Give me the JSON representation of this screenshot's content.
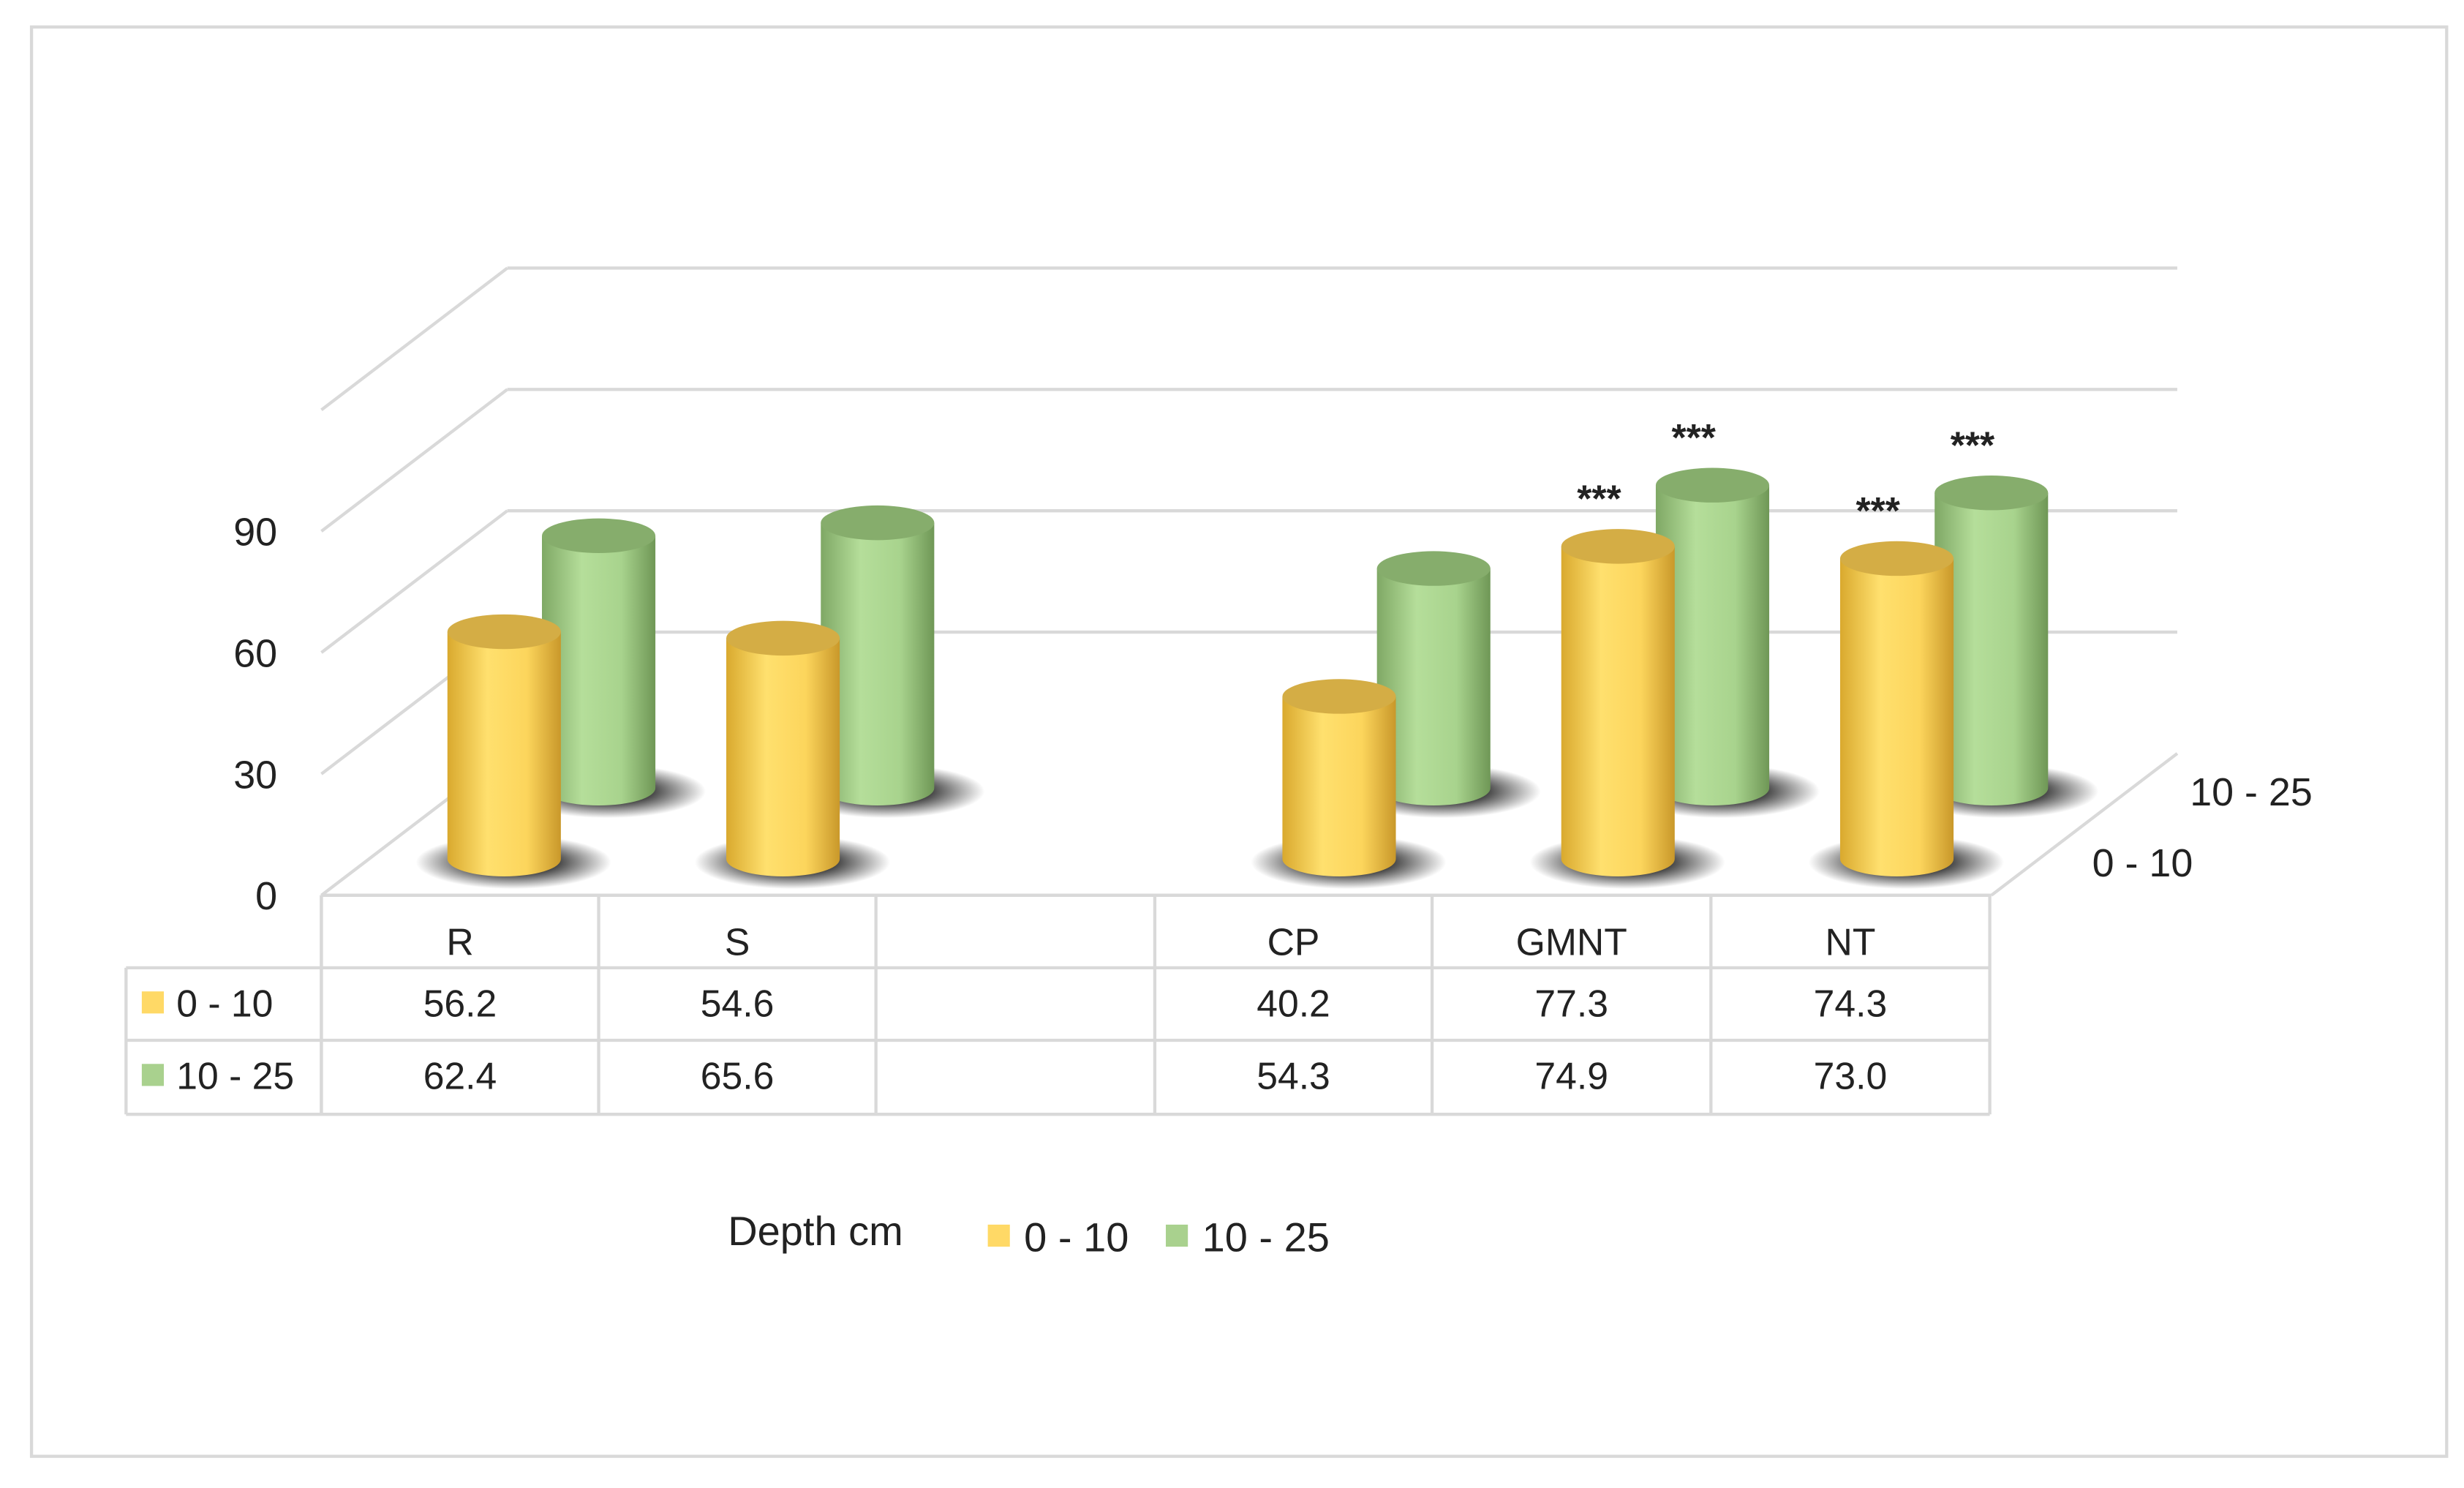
{
  "chart_data": {
    "type": "bar",
    "subtype": "3d-cylinder-clustered",
    "categories": [
      "R",
      "S",
      "",
      "CP",
      "GMNT",
      "NT"
    ],
    "series": [
      {
        "name": "0 - 10",
        "color": "#FFD966",
        "values": [
          56.2,
          54.6,
          null,
          40.2,
          77.3,
          74.3
        ],
        "annotations": [
          "",
          "",
          "",
          "",
          "***",
          "***"
        ]
      },
      {
        "name": "10 - 25",
        "color": "#A9D18E",
        "values": [
          62.4,
          65.6,
          null,
          54.3,
          74.9,
          73.0
        ],
        "annotations": [
          "",
          "",
          "",
          "",
          "***",
          "***"
        ]
      }
    ],
    "table_values": [
      [
        "56.2",
        "54.6",
        "",
        "40.2",
        "77.3",
        "74.3"
      ],
      [
        "62.4",
        "65.6",
        "",
        "54.3",
        "74.9",
        "73.0"
      ]
    ],
    "yticks": [
      "0",
      "30",
      "60",
      "90"
    ],
    "ylim": [
      0,
      90
    ],
    "depth_labels": [
      "0 - 10",
      "10 - 25"
    ],
    "legend": {
      "title": "Depth cm",
      "entries": [
        "0 - 10",
        "10 - 25"
      ],
      "placement": "bottom"
    },
    "grid": true,
    "data_table": true
  }
}
